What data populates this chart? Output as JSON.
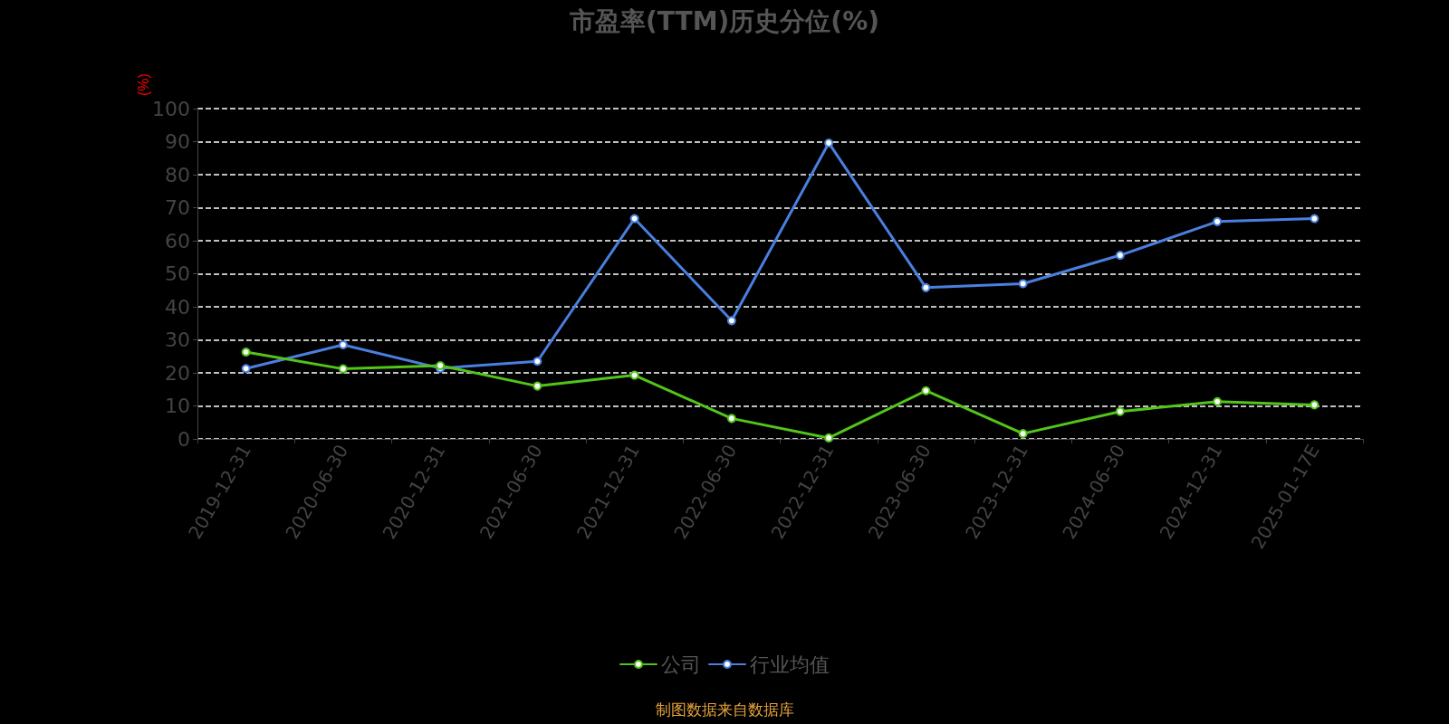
{
  "chart_data": {
    "type": "line",
    "title": "市盈率(TTM)历史分位(%)",
    "ylabel": "(%)",
    "categories": [
      "2019-12-31",
      "2020-06-30",
      "2020-12-31",
      "2021-06-30",
      "2021-12-31",
      "2022-06-30",
      "2022-12-31",
      "2023-06-30",
      "2023-12-31",
      "2024-06-30",
      "2024-12-31",
      "2025-01-17E"
    ],
    "series": [
      {
        "name": "公司",
        "color": "#52c41a",
        "values": [
          26.3,
          21.2,
          22.2,
          16.0,
          19.3,
          6.2,
          0.3,
          14.6,
          1.6,
          8.3,
          11.3,
          10.3
        ]
      },
      {
        "name": "行业均值",
        "color": "#4a7fe0",
        "values": [
          21.3,
          28.5,
          21.4,
          23.5,
          66.7,
          35.8,
          89.6,
          45.8,
          47.0,
          55.6,
          65.8,
          66.7
        ]
      }
    ],
    "ylim": [
      0,
      100
    ],
    "yticks": [
      0,
      10,
      20,
      30,
      40,
      50,
      60,
      70,
      80,
      90,
      100
    ],
    "grid": "y",
    "legend": "bottom",
    "marker": "circle",
    "line_style": "solid",
    "annotations": [
      "制图数据来自数据库"
    ]
  }
}
